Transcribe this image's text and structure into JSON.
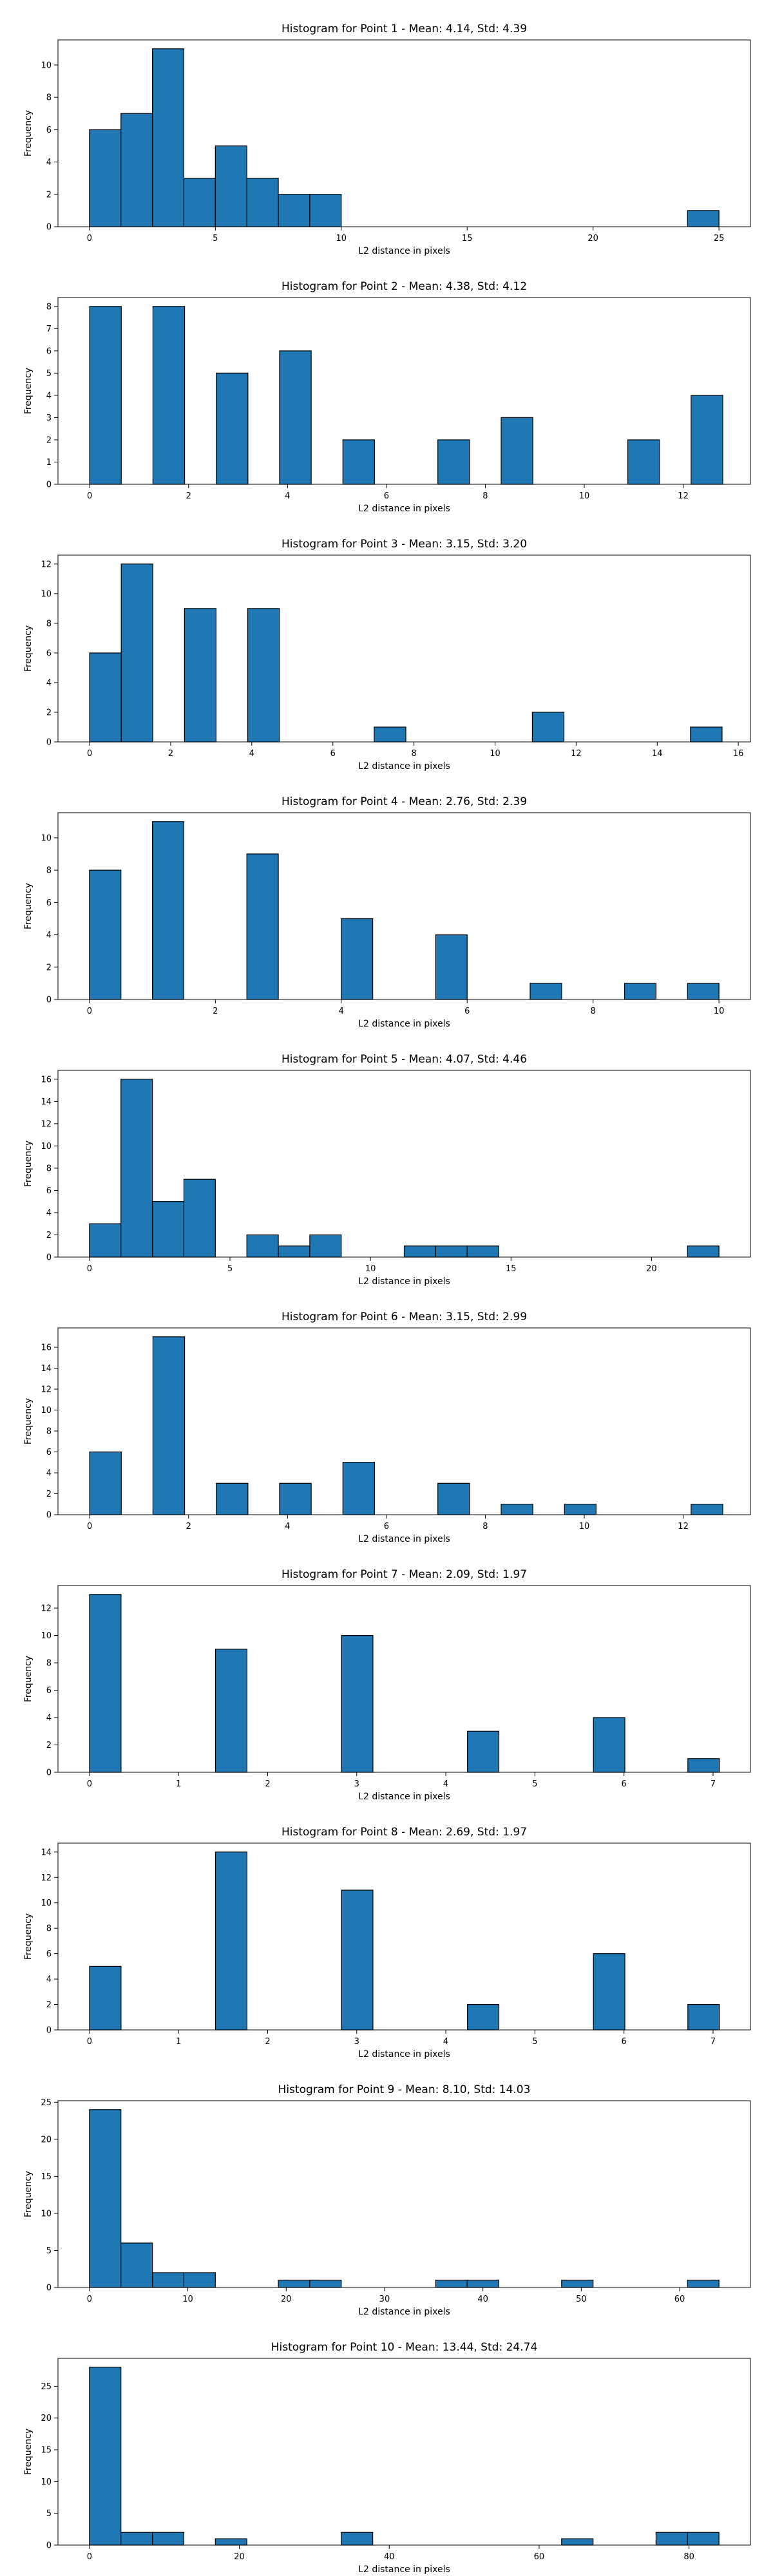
{
  "colors": {
    "bar_fill": "#1f77b4",
    "bar_edge": "#000000"
  },
  "chart_data": [
    {
      "type": "bar",
      "title": "Histogram for Point 1 - Mean: 4.14, Std: 4.39",
      "xlabel": "L2 distance in pixels",
      "ylabel": "Frequency",
      "xlim": [
        -1.25,
        26.25
      ],
      "ylim": [
        0,
        11.55
      ],
      "xticks": [
        0,
        5,
        10,
        15,
        20,
        25
      ],
      "xtick_labels": [
        "0",
        "5",
        "10",
        "15",
        "20",
        "25"
      ],
      "yticks": [
        0,
        2,
        4,
        6,
        8,
        10
      ],
      "ytick_labels": [
        "0",
        "2",
        "4",
        "6",
        "8",
        "10"
      ],
      "bins": [
        {
          "start": 0,
          "end": 1.25,
          "count": 6
        },
        {
          "start": 1.25,
          "end": 2.5,
          "count": 7
        },
        {
          "start": 2.5,
          "end": 3.75,
          "count": 11
        },
        {
          "start": 3.75,
          "end": 5,
          "count": 3
        },
        {
          "start": 5,
          "end": 6.25,
          "count": 5
        },
        {
          "start": 6.25,
          "end": 7.5,
          "count": 3
        },
        {
          "start": 7.5,
          "end": 8.75,
          "count": 2
        },
        {
          "start": 8.75,
          "end": 10,
          "count": 2
        },
        {
          "start": 23.75,
          "end": 25,
          "count": 1
        }
      ]
    },
    {
      "type": "bar",
      "title": "Histogram for Point 2 - Mean: 4.38, Std: 4.12",
      "xlabel": "L2 distance in pixels",
      "ylabel": "Frequency",
      "xlim": [
        -0.64,
        13.36
      ],
      "ylim": [
        0,
        8.4
      ],
      "xticks": [
        0,
        2,
        4,
        6,
        8,
        10,
        12
      ],
      "xtick_labels": [
        "0",
        "2",
        "4",
        "6",
        "8",
        "10",
        "12"
      ],
      "yticks": [
        0,
        1,
        2,
        3,
        4,
        5,
        6,
        7,
        8
      ],
      "ytick_labels": [
        "0",
        "1",
        "2",
        "3",
        "4",
        "5",
        "6",
        "7",
        "8"
      ],
      "bins": [
        {
          "start": 0,
          "end": 0.64,
          "count": 8
        },
        {
          "start": 1.28,
          "end": 1.92,
          "count": 8
        },
        {
          "start": 2.56,
          "end": 3.2,
          "count": 5
        },
        {
          "start": 3.84,
          "end": 4.48,
          "count": 6
        },
        {
          "start": 5.12,
          "end": 5.76,
          "count": 2
        },
        {
          "start": 7.04,
          "end": 7.68,
          "count": 2
        },
        {
          "start": 8.32,
          "end": 8.96,
          "count": 3
        },
        {
          "start": 10.88,
          "end": 11.52,
          "count": 2
        },
        {
          "start": 12.16,
          "end": 12.8,
          "count": 4
        }
      ]
    },
    {
      "type": "bar",
      "title": "Histogram for Point 3 - Mean: 3.15, Std: 3.20",
      "xlabel": "L2 distance in pixels",
      "ylabel": "Frequency",
      "xlim": [
        -0.78,
        16.3
      ],
      "ylim": [
        0,
        12.6
      ],
      "xticks": [
        0,
        2,
        4,
        6,
        8,
        10,
        12,
        14,
        16
      ],
      "xtick_labels": [
        "0",
        "2",
        "4",
        "6",
        "8",
        "10",
        "12",
        "14",
        "16"
      ],
      "yticks": [
        0,
        2,
        4,
        6,
        8,
        10,
        12
      ],
      "ytick_labels": [
        "0",
        "2",
        "4",
        "6",
        "8",
        "10",
        "12"
      ],
      "bins": [
        {
          "start": 0,
          "end": 0.78,
          "count": 6
        },
        {
          "start": 0.78,
          "end": 1.56,
          "count": 12
        },
        {
          "start": 2.34,
          "end": 3.12,
          "count": 9
        },
        {
          "start": 3.9,
          "end": 4.68,
          "count": 9
        },
        {
          "start": 7.02,
          "end": 7.8,
          "count": 1
        },
        {
          "start": 10.92,
          "end": 11.7,
          "count": 2
        },
        {
          "start": 14.82,
          "end": 15.6,
          "count": 1
        }
      ]
    },
    {
      "type": "bar",
      "title": "Histogram for Point 4 - Mean: 2.76, Std: 2.39",
      "xlabel": "L2 distance in pixels",
      "ylabel": "Frequency",
      "xlim": [
        -0.5,
        10.5
      ],
      "ylim": [
        0,
        11.55
      ],
      "xticks": [
        0,
        2,
        4,
        6,
        8,
        10
      ],
      "xtick_labels": [
        "0",
        "2",
        "4",
        "6",
        "8",
        "10"
      ],
      "yticks": [
        0,
        2,
        4,
        6,
        8,
        10
      ],
      "ytick_labels": [
        "0",
        "2",
        "4",
        "6",
        "8",
        "10"
      ],
      "bins": [
        {
          "start": 0,
          "end": 0.5,
          "count": 8
        },
        {
          "start": 1,
          "end": 1.5,
          "count": 11
        },
        {
          "start": 2.5,
          "end": 3,
          "count": 9
        },
        {
          "start": 4,
          "end": 4.5,
          "count": 5
        },
        {
          "start": 5.5,
          "end": 6,
          "count": 4
        },
        {
          "start": 7,
          "end": 7.5,
          "count": 1
        },
        {
          "start": 8.5,
          "end": 9,
          "count": 1
        },
        {
          "start": 9.5,
          "end": 10,
          "count": 1
        }
      ]
    },
    {
      "type": "bar",
      "title": "Histogram for Point 5 - Mean: 4.07, Std: 4.46",
      "xlabel": "L2 distance in pixels",
      "ylabel": "Frequency",
      "xlim": [
        -1.12,
        23.52
      ],
      "ylim": [
        0,
        16.8
      ],
      "xticks": [
        0,
        5,
        10,
        15,
        20
      ],
      "xtick_labels": [
        "0",
        "5",
        "10",
        "15",
        "20"
      ],
      "yticks": [
        0,
        2,
        4,
        6,
        8,
        10,
        12,
        14,
        16
      ],
      "ytick_labels": [
        "0",
        "2",
        "4",
        "6",
        "8",
        "10",
        "12",
        "14",
        "16"
      ],
      "bins": [
        {
          "start": 0,
          "end": 1.12,
          "count": 3
        },
        {
          "start": 1.12,
          "end": 2.24,
          "count": 16
        },
        {
          "start": 2.24,
          "end": 3.36,
          "count": 5
        },
        {
          "start": 3.36,
          "end": 4.48,
          "count": 7
        },
        {
          "start": 5.6,
          "end": 6.72,
          "count": 2
        },
        {
          "start": 6.72,
          "end": 7.84,
          "count": 1
        },
        {
          "start": 7.84,
          "end": 8.96,
          "count": 2
        },
        {
          "start": 11.2,
          "end": 12.32,
          "count": 1
        },
        {
          "start": 12.32,
          "end": 13.44,
          "count": 1
        },
        {
          "start": 13.44,
          "end": 14.56,
          "count": 1
        },
        {
          "start": 21.28,
          "end": 22.4,
          "count": 1
        }
      ]
    },
    {
      "type": "bar",
      "title": "Histogram for Point 6 - Mean: 3.15, Std: 2.99",
      "xlabel": "L2 distance in pixels",
      "ylabel": "Frequency",
      "xlim": [
        -0.64,
        13.36
      ],
      "ylim": [
        0,
        17.85
      ],
      "xticks": [
        0,
        2,
        4,
        6,
        8,
        10,
        12
      ],
      "xtick_labels": [
        "0",
        "2",
        "4",
        "6",
        "8",
        "10",
        "12"
      ],
      "yticks": [
        0,
        2,
        4,
        6,
        8,
        10,
        12,
        14,
        16
      ],
      "ytick_labels": [
        "0",
        "2",
        "4",
        "6",
        "8",
        "10",
        "12",
        "14",
        "16"
      ],
      "bins": [
        {
          "start": 0,
          "end": 0.64,
          "count": 6
        },
        {
          "start": 1.28,
          "end": 1.92,
          "count": 17
        },
        {
          "start": 2.56,
          "end": 3.2,
          "count": 3
        },
        {
          "start": 3.84,
          "end": 4.48,
          "count": 3
        },
        {
          "start": 5.12,
          "end": 5.76,
          "count": 5
        },
        {
          "start": 7.04,
          "end": 7.68,
          "count": 3
        },
        {
          "start": 8.32,
          "end": 8.96,
          "count": 1
        },
        {
          "start": 9.6,
          "end": 10.24,
          "count": 1
        },
        {
          "start": 12.16,
          "end": 12.8,
          "count": 1
        }
      ]
    },
    {
      "type": "bar",
      "title": "Histogram for Point 7 - Mean: 2.09, Std: 1.97",
      "xlabel": "L2 distance in pixels",
      "ylabel": "Frequency",
      "xlim": [
        -0.354,
        7.42
      ],
      "ylim": [
        0,
        13.65
      ],
      "xticks": [
        0,
        1,
        2,
        3,
        4,
        5,
        6,
        7
      ],
      "xtick_labels": [
        "0",
        "1",
        "2",
        "3",
        "4",
        "5",
        "6",
        "7"
      ],
      "yticks": [
        0,
        2,
        4,
        6,
        8,
        10,
        12
      ],
      "ytick_labels": [
        "0",
        "2",
        "4",
        "6",
        "8",
        "10",
        "12"
      ],
      "bins": [
        {
          "start": 0,
          "end": 0.354,
          "count": 13
        },
        {
          "start": 1.414,
          "end": 1.768,
          "count": 9
        },
        {
          "start": 2.828,
          "end": 3.182,
          "count": 10
        },
        {
          "start": 4.243,
          "end": 4.596,
          "count": 3
        },
        {
          "start": 5.657,
          "end": 6.01,
          "count": 4
        },
        {
          "start": 6.717,
          "end": 7.071,
          "count": 1
        }
      ]
    },
    {
      "type": "bar",
      "title": "Histogram for Point 8 - Mean: 2.69, Std: 1.97",
      "xlabel": "L2 distance in pixels",
      "ylabel": "Frequency",
      "xlim": [
        -0.354,
        7.42
      ],
      "ylim": [
        0,
        14.7
      ],
      "xticks": [
        0,
        1,
        2,
        3,
        4,
        5,
        6,
        7
      ],
      "xtick_labels": [
        "0",
        "1",
        "2",
        "3",
        "4",
        "5",
        "6",
        "7"
      ],
      "yticks": [
        0,
        2,
        4,
        6,
        8,
        10,
        12,
        14
      ],
      "ytick_labels": [
        "0",
        "2",
        "4",
        "6",
        "8",
        "10",
        "12",
        "14"
      ],
      "bins": [
        {
          "start": 0,
          "end": 0.354,
          "count": 5
        },
        {
          "start": 1.414,
          "end": 1.768,
          "count": 14
        },
        {
          "start": 2.828,
          "end": 3.182,
          "count": 11
        },
        {
          "start": 4.243,
          "end": 4.596,
          "count": 2
        },
        {
          "start": 5.657,
          "end": 6.01,
          "count": 6
        },
        {
          "start": 6.717,
          "end": 7.071,
          "count": 2
        }
      ]
    },
    {
      "type": "bar",
      "title": "Histogram for Point 9 - Mean: 8.10, Std: 14.03",
      "xlabel": "L2 distance in pixels",
      "ylabel": "Frequency",
      "xlim": [
        -3.2,
        67.2
      ],
      "ylim": [
        0,
        25.2
      ],
      "xticks": [
        0,
        10,
        20,
        30,
        40,
        50,
        60
      ],
      "xtick_labels": [
        "0",
        "10",
        "20",
        "30",
        "40",
        "50",
        "60"
      ],
      "yticks": [
        0,
        5,
        10,
        15,
        20,
        25
      ],
      "ytick_labels": [
        "0",
        "5",
        "10",
        "15",
        "20",
        "25"
      ],
      "bins": [
        {
          "start": 0,
          "end": 3.2,
          "count": 24
        },
        {
          "start": 3.2,
          "end": 6.4,
          "count": 6
        },
        {
          "start": 6.4,
          "end": 9.6,
          "count": 2
        },
        {
          "start": 9.6,
          "end": 12.8,
          "count": 2
        },
        {
          "start": 19.2,
          "end": 22.4,
          "count": 1
        },
        {
          "start": 22.4,
          "end": 25.6,
          "count": 1
        },
        {
          "start": 35.2,
          "end": 38.4,
          "count": 1
        },
        {
          "start": 38.4,
          "end": 41.6,
          "count": 1
        },
        {
          "start": 48,
          "end": 51.2,
          "count": 1
        },
        {
          "start": 60.8,
          "end": 64,
          "count": 1
        }
      ]
    },
    {
      "type": "bar",
      "title": "Histogram for Point 10 - Mean: 13.44, Std: 24.74",
      "xlabel": "L2 distance in pixels",
      "ylabel": "Frequency",
      "xlim": [
        -4.2,
        88.2
      ],
      "ylim": [
        0,
        29.4
      ],
      "xticks": [
        0,
        20,
        40,
        60,
        80
      ],
      "xtick_labels": [
        "0",
        "20",
        "40",
        "60",
        "80"
      ],
      "yticks": [
        0,
        5,
        10,
        15,
        20,
        25
      ],
      "ytick_labels": [
        "0",
        "5",
        "10",
        "15",
        "20",
        "25"
      ],
      "bins": [
        {
          "start": 0,
          "end": 4.2,
          "count": 28
        },
        {
          "start": 4.2,
          "end": 8.4,
          "count": 2
        },
        {
          "start": 8.4,
          "end": 12.6,
          "count": 2
        },
        {
          "start": 16.8,
          "end": 21,
          "count": 1
        },
        {
          "start": 33.6,
          "end": 37.8,
          "count": 2
        },
        {
          "start": 63,
          "end": 67.2,
          "count": 1
        },
        {
          "start": 75.6,
          "end": 79.8,
          "count": 2
        },
        {
          "start": 79.8,
          "end": 84,
          "count": 2
        }
      ]
    }
  ]
}
